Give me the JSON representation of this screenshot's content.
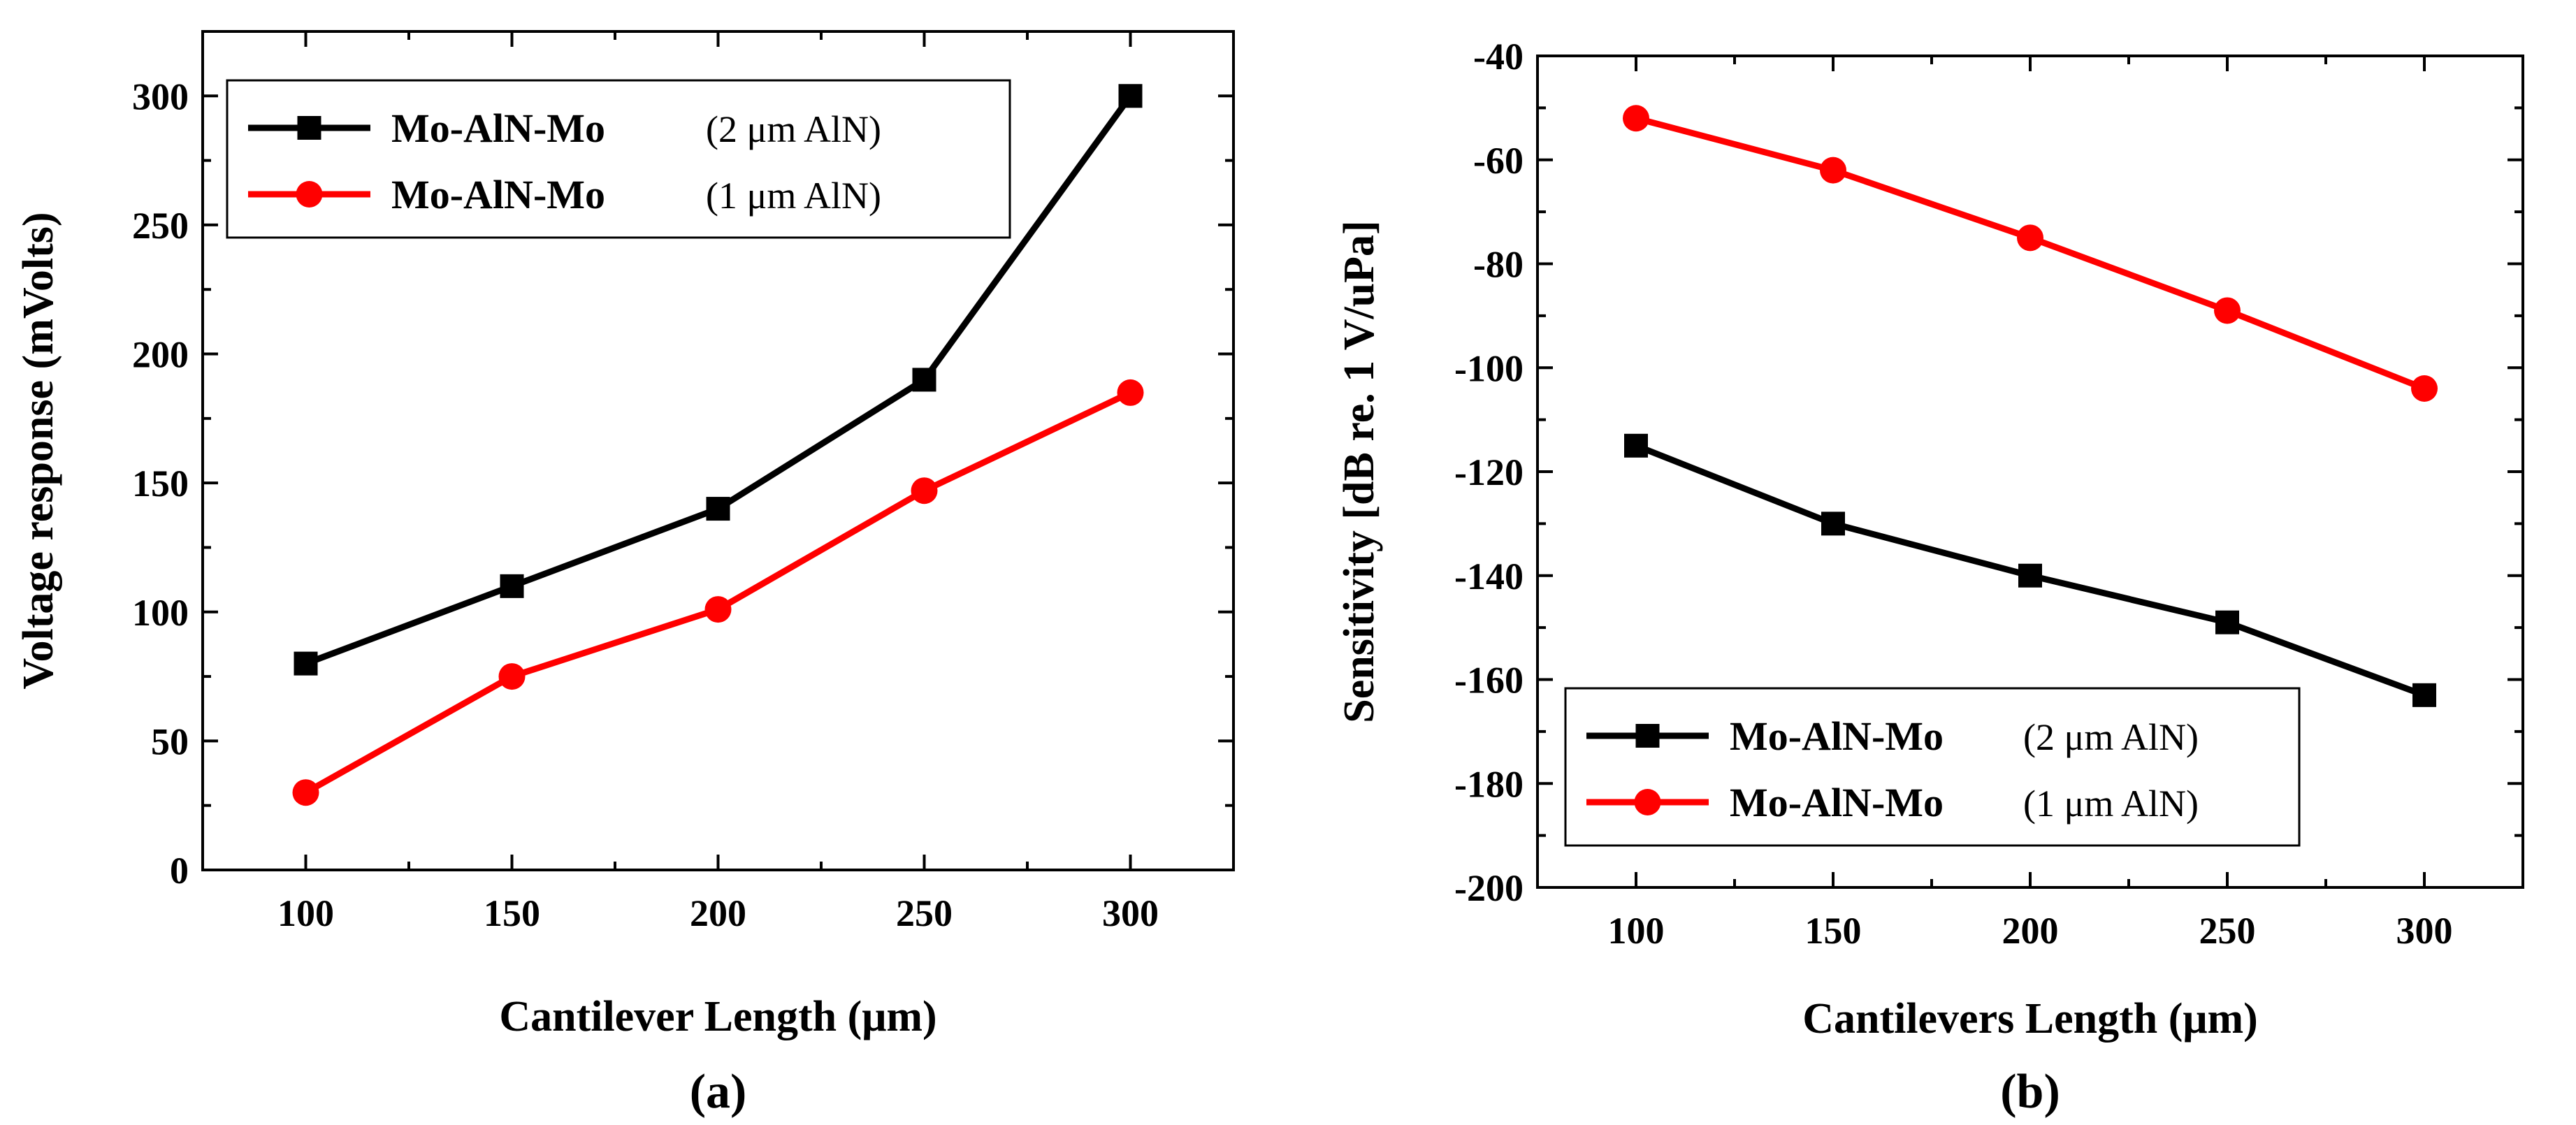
{
  "chart_data": [
    {
      "type": "line",
      "panel_label": "(a)",
      "title": "",
      "xlabel": "Cantilever Length (μm)",
      "ylabel": "Voltage response (mVolts)",
      "xlim": [
        75,
        325
      ],
      "ylim": [
        0,
        325
      ],
      "xticks": [
        100,
        150,
        200,
        250,
        300
      ],
      "yticks": [
        0,
        50,
        100,
        150,
        200,
        250,
        300
      ],
      "legend_position": "top-left",
      "x": [
        100,
        150,
        200,
        250,
        300
      ],
      "series": [
        {
          "name": "Mo-AlN-Mo",
          "suffix": "(2 μm AlN)",
          "color": "#000000",
          "marker": "square",
          "values": [
            80,
            110,
            140,
            190,
            300
          ]
        },
        {
          "name": "Mo-AlN-Mo",
          "suffix": "(1 μm AlN)",
          "color": "#ff0000",
          "marker": "circle",
          "values": [
            30,
            75,
            101,
            147,
            185
          ]
        }
      ]
    },
    {
      "type": "line",
      "panel_label": "(b)",
      "title": "",
      "xlabel": "Cantilevers Length (μm)",
      "ylabel": "Sensitivity [dB re. 1 V/uPa]",
      "xlim": [
        75,
        325
      ],
      "ylim": [
        -200,
        -40
      ],
      "xticks": [
        100,
        150,
        200,
        250,
        300
      ],
      "yticks": [
        -200,
        -180,
        -160,
        -140,
        -120,
        -100,
        -80,
        -60,
        -40
      ],
      "legend_position": "bottom-left",
      "x": [
        100,
        150,
        200,
        250,
        300
      ],
      "series": [
        {
          "name": "Mo-AlN-Mo",
          "suffix": "(2 μm AlN)",
          "color": "#000000",
          "marker": "square",
          "values": [
            -115,
            -130,
            -140,
            -149,
            -163
          ]
        },
        {
          "name": "Mo-AlN-Mo",
          "suffix": "(1 μm AlN)",
          "color": "#ff0000",
          "marker": "circle",
          "values": [
            -52,
            -62,
            -75,
            -89,
            -104
          ]
        }
      ]
    }
  ]
}
